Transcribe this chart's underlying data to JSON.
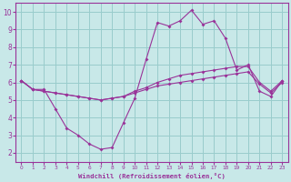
{
  "xlabel": "Windchill (Refroidissement éolien,°C)",
  "x": [
    0,
    1,
    2,
    3,
    4,
    5,
    6,
    7,
    8,
    9,
    10,
    11,
    12,
    13,
    14,
    15,
    16,
    17,
    18,
    19,
    20,
    21,
    22,
    23
  ],
  "line1": [
    6.1,
    5.6,
    5.6,
    4.5,
    3.4,
    3.0,
    2.5,
    2.2,
    2.3,
    3.7,
    5.1,
    7.3,
    9.4,
    9.2,
    9.5,
    10.1,
    9.3,
    9.5,
    8.5,
    6.7,
    7.0,
    5.5,
    5.2,
    6.1
  ],
  "line2": [
    6.1,
    5.6,
    5.5,
    5.4,
    5.3,
    5.2,
    5.1,
    5.0,
    5.1,
    5.2,
    5.5,
    5.7,
    6.0,
    6.2,
    6.4,
    6.5,
    6.6,
    6.7,
    6.8,
    6.9,
    6.9,
    6.0,
    5.5,
    6.1
  ],
  "line3": [
    6.1,
    5.6,
    5.5,
    5.4,
    5.3,
    5.2,
    5.1,
    5.0,
    5.1,
    5.2,
    5.4,
    5.6,
    5.8,
    5.9,
    6.0,
    6.1,
    6.2,
    6.3,
    6.4,
    6.5,
    6.6,
    5.9,
    5.4,
    6.0
  ],
  "ylim": [
    1.5,
    10.5
  ],
  "xlim": [
    -0.5,
    23.5
  ],
  "yticks": [
    2,
    3,
    4,
    5,
    6,
    7,
    8,
    9,
    10
  ],
  "xticks": [
    0,
    1,
    2,
    3,
    4,
    5,
    6,
    7,
    8,
    9,
    10,
    11,
    12,
    13,
    14,
    15,
    16,
    17,
    18,
    19,
    20,
    21,
    22,
    23
  ],
  "line_color": "#993399",
  "bg_color": "#c8e8e8",
  "grid_color": "#99cccc",
  "axis_color": "#993399",
  "xlabel_color": "#993399",
  "tick_color": "#993399"
}
